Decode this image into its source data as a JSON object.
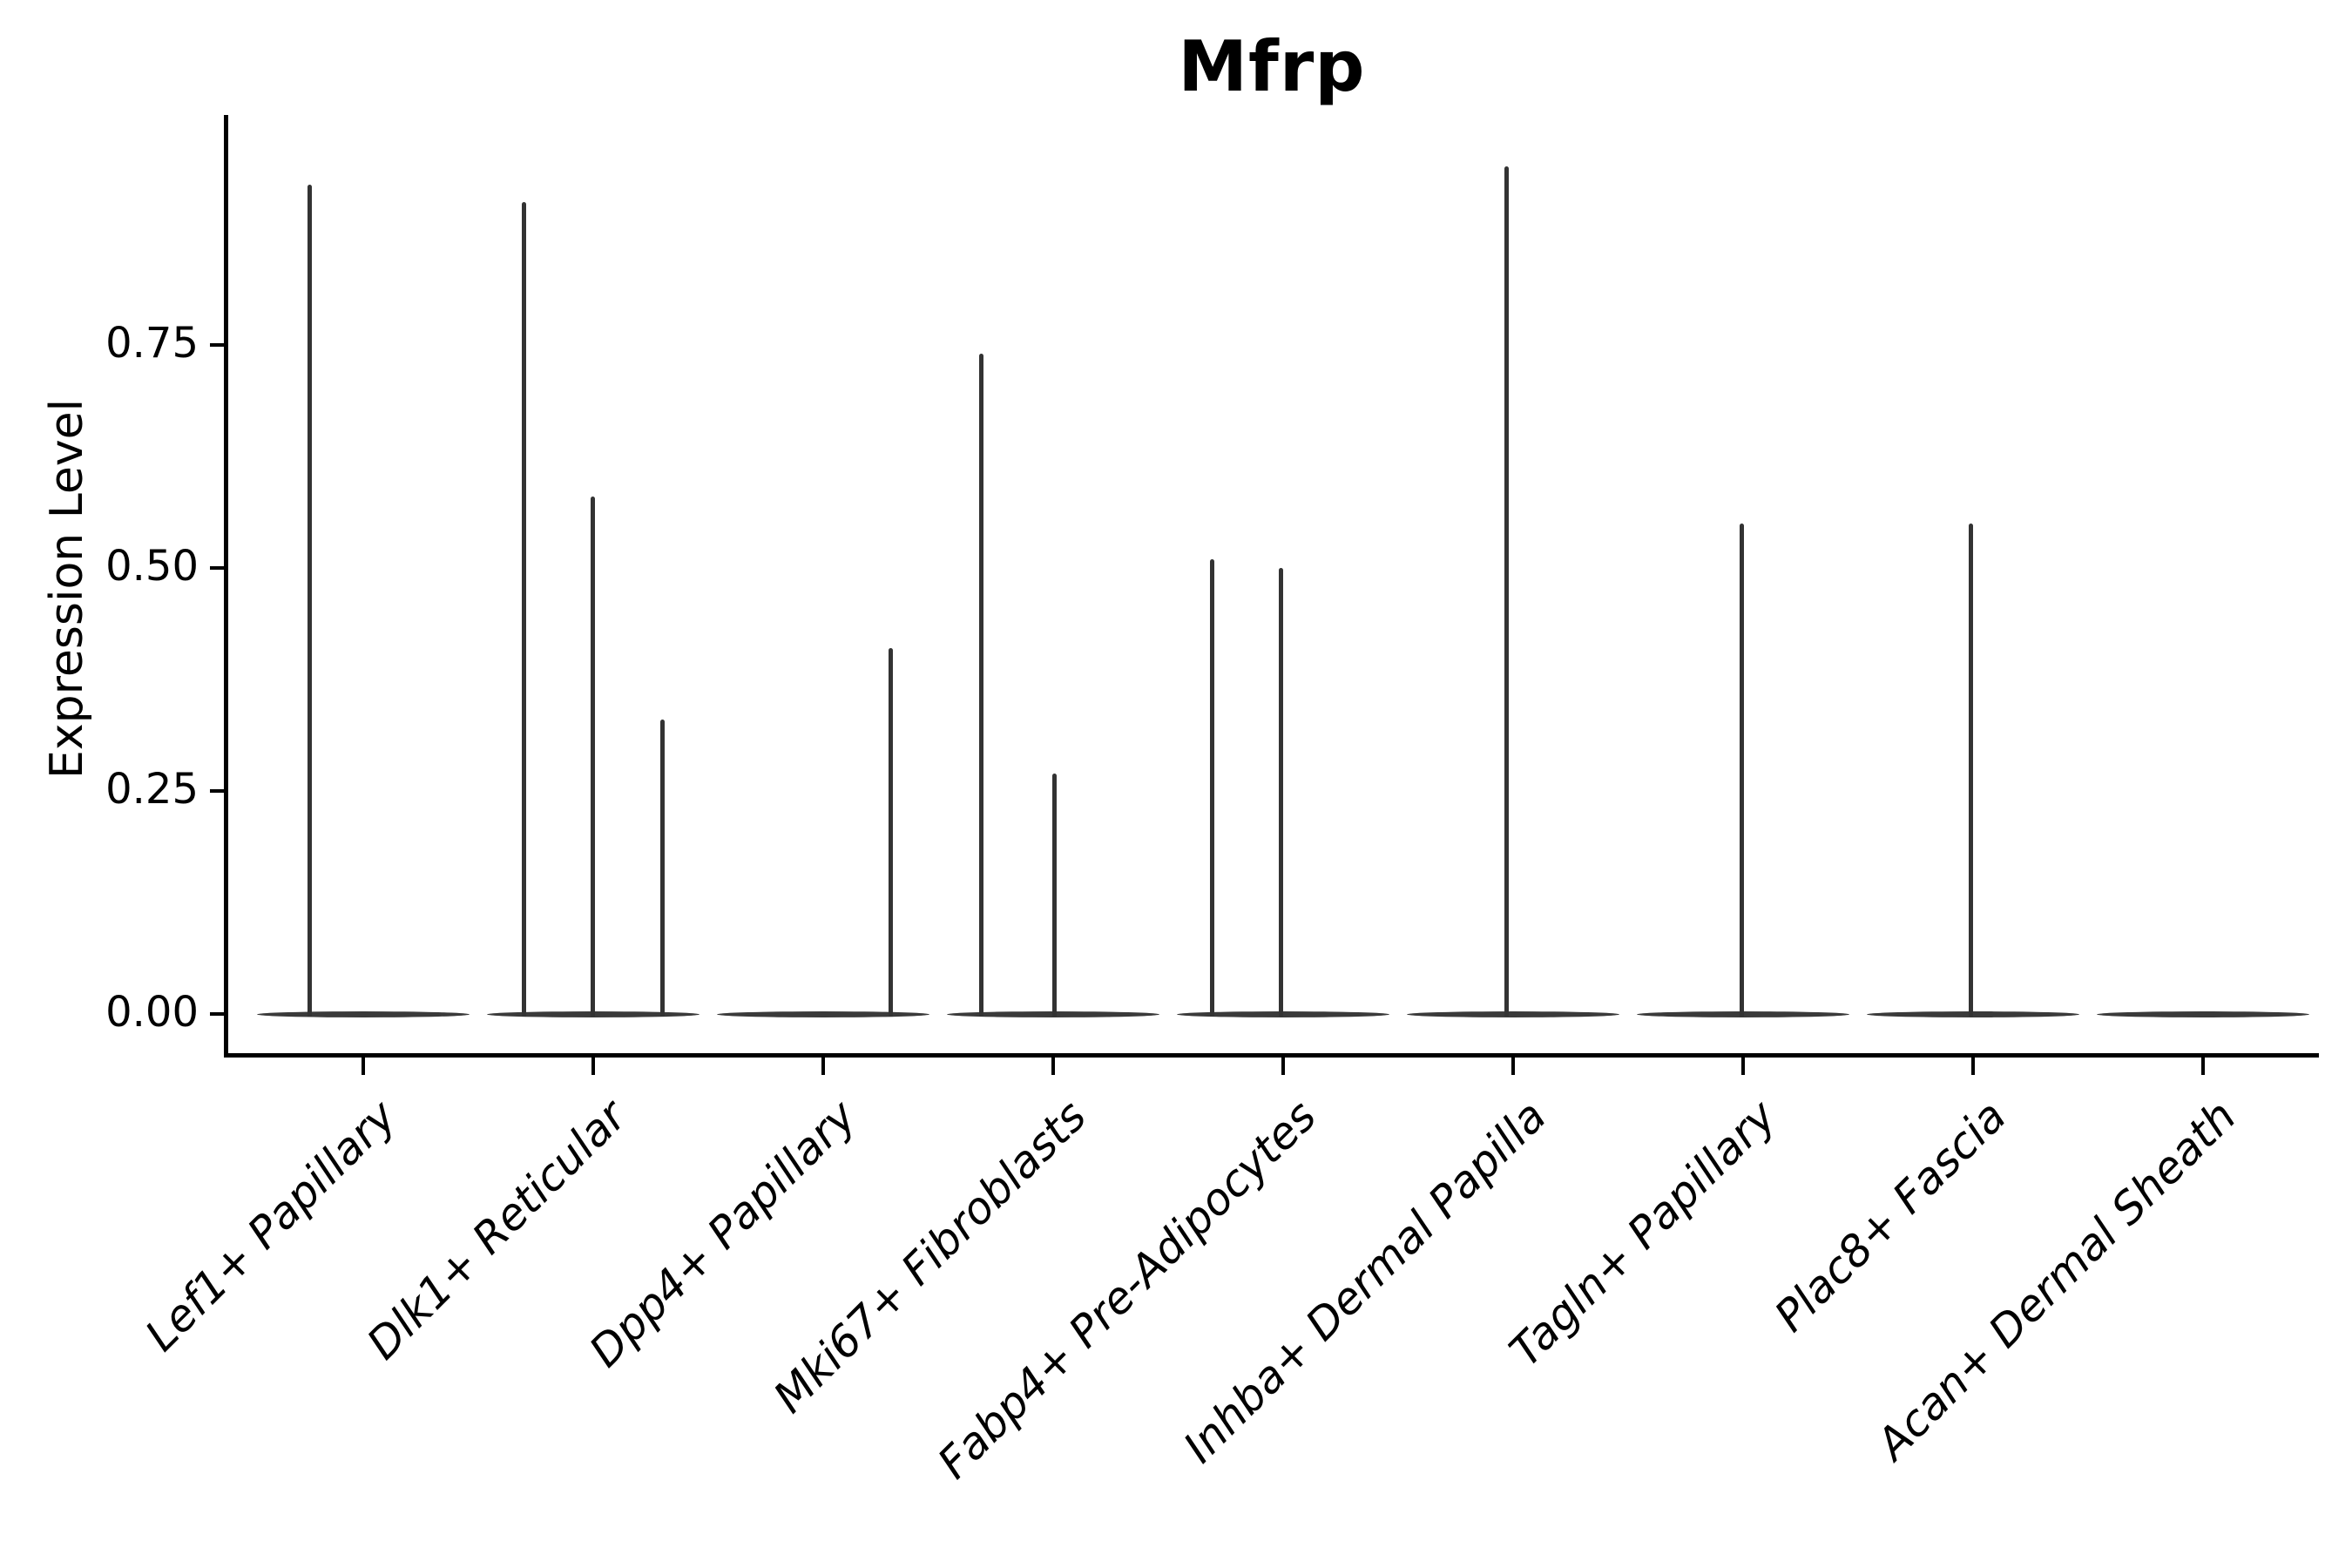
{
  "figure": {
    "title": "Mfrp",
    "ylabel": "Expression Level"
  },
  "chart_data": {
    "type": "violin",
    "title": "Mfrp",
    "xlabel": "",
    "ylabel": "Expression Level",
    "ylim": [
      0,
      1.0
    ],
    "grid": "off",
    "legend": "none",
    "yticks": [
      {
        "label": "0.00",
        "value": 0.0
      },
      {
        "label": "0.25",
        "value": 0.25
      },
      {
        "label": "0.50",
        "value": 0.5
      },
      {
        "label": "0.75",
        "value": 0.75
      }
    ],
    "categories": [
      "Lef1+ Papillary",
      "Dlk1+ Reticular",
      "Dpp4+ Papillary",
      "Mki67+ Fibroblasts",
      "Fabp4+ Pre-Adipocytes",
      "Inhba+ Dermal Papilla",
      "Tagln+ Papillary",
      "Plac8+ Fascia",
      "Acan+ Dermal Sheath"
    ],
    "series": [
      {
        "name": "Lef1+ Papillary",
        "spikes": [
          {
            "value": 0.93,
            "dx": -62
          }
        ]
      },
      {
        "name": "Dlk1+ Reticular",
        "spikes": [
          {
            "value": 0.91,
            "dx": -80
          },
          {
            "value": 0.58,
            "dx": -1
          },
          {
            "value": 0.33,
            "dx": 79
          }
        ]
      },
      {
        "name": "Dpp4+ Papillary",
        "spikes": [
          {
            "value": 0.41,
            "dx": 77
          }
        ]
      },
      {
        "name": "Mki67+ Fibroblasts",
        "spikes": [
          {
            "value": 0.74,
            "dx": -83
          },
          {
            "value": 0.27,
            "dx": 1
          }
        ]
      },
      {
        "name": "Fabp4+ Pre-Adipocytes",
        "spikes": [
          {
            "value": 0.51,
            "dx": -82
          },
          {
            "value": 0.5,
            "dx": -3
          }
        ]
      },
      {
        "name": "Inhba+ Dermal Papilla",
        "spikes": [
          {
            "value": 0.95,
            "dx": -8
          }
        ]
      },
      {
        "name": "Tagln+ Papillary",
        "spikes": [
          {
            "value": 0.55,
            "dx": -2
          }
        ]
      },
      {
        "name": "Plac8+ Fascia",
        "spikes": [
          {
            "value": 0.55,
            "dx": -3
          }
        ]
      },
      {
        "name": "Acan+ Dermal Sheath",
        "spikes": []
      }
    ],
    "colors": {
      "violin": "#3a3a3a",
      "spike": "#333333",
      "axis": "#000000",
      "text": "#000000"
    }
  }
}
